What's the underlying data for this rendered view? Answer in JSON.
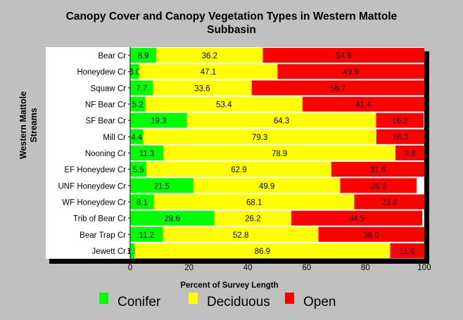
{
  "chart_data": {
    "type": "bar",
    "orientation": "horizontal",
    "stacked": true,
    "title_line1": "Canopy Cover and Canopy Vegetation Types in Western Mattole",
    "title_line2": "Subbasin",
    "xlabel": "Percent of Survey Length",
    "ylabel_line1": "Western Mattole",
    "ylabel_line2": "Streams",
    "xlim": [
      0,
      100
    ],
    "xticks": [
      "0",
      "20",
      "40",
      "60",
      "80",
      "100"
    ],
    "grid": false,
    "legend_position": "bottom",
    "categories": [
      "Bear Cr",
      "Honeydew Cr",
      "Squaw Cr",
      "NF Bear Cr",
      "SF Bear Cr",
      "Mill Cr",
      "Nooning Cr",
      "EF Honeydew Cr",
      "UNF Honeydew Cr",
      "WF Honeydew Cr",
      "Trib of Bear Cr",
      "Bear Trap Cr",
      "Jewett Cr"
    ],
    "series": [
      {
        "name": "Conifer",
        "color": "#00ff00",
        "values": [
          8.9,
          3.0,
          7.7,
          5.2,
          19.3,
          4.4,
          11.3,
          5.5,
          21.5,
          8.1,
          28.6,
          11.2,
          1.5
        ],
        "labels": [
          "8.9",
          "3.0",
          "7.7",
          "5.2",
          "19.3",
          "4.4",
          "11.3",
          "5.5",
          "21.5",
          "8.1",
          "28.6",
          "11.2",
          "1.5"
        ]
      },
      {
        "name": "Deciduous",
        "color": "#ffff00",
        "values": [
          36.2,
          47.1,
          33.6,
          53.4,
          64.3,
          79.3,
          78.9,
          62.9,
          49.9,
          68.1,
          26.2,
          52.8,
          86.9
        ],
        "labels": [
          "36.2",
          "47.1",
          "33.6",
          "53.4",
          "64.3",
          "79.3",
          "78.9",
          "62.9",
          "49.9",
          "68.1",
          "26.2",
          "52.8",
          "86.9"
        ]
      },
      {
        "name": "Open",
        "color": "#ff0000",
        "values": [
          54.9,
          49.9,
          58.7,
          41.4,
          16.2,
          16.3,
          9.8,
          31.6,
          26.0,
          23.8,
          44.5,
          36.0,
          11.6
        ],
        "labels": [
          "54.9",
          "49.9",
          "58.7",
          "41.4",
          "16.2",
          "16.3",
          "9.8",
          "31.6",
          "26.0",
          "23.8",
          "44.5",
          "36.0",
          "11.6"
        ]
      }
    ]
  }
}
